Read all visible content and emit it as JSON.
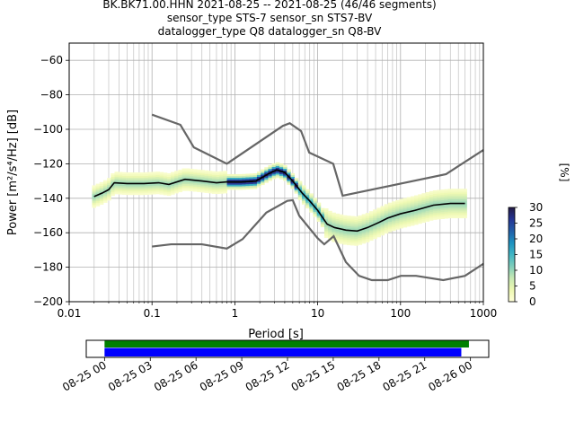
{
  "title_lines": [
    "BK.BK71.00.HHN   2021-08-25 -- 2021-08-25  (46/46 segments)",
    "sensor_type STS-7 sensor_sn STS7-BV",
    "datalogger_type Q8 datalogger_sn Q8-BV"
  ],
  "chart_data": [
    {
      "type": "heatmap",
      "xlabel": "Period [s]",
      "ylabel": "Power [m²/s⁴/Hz] [dB]",
      "xscale": "log",
      "xlim": [
        0.01,
        1000
      ],
      "ylim": [
        -200,
        -50
      ],
      "x_ticks": [
        0.01,
        0.1,
        1,
        10,
        100,
        1000
      ],
      "x_tick_labels": [
        "0.01",
        "0.1",
        "1",
        "10",
        "100",
        "1000"
      ],
      "y_ticks": [
        -200,
        -180,
        -160,
        -140,
        -120,
        -100,
        -80,
        -60
      ],
      "y_tick_labels": [
        "−200",
        "−180",
        "−160",
        "−140",
        "−120",
        "−100",
        "−80",
        "−60"
      ],
      "grid": true,
      "noise_model_high": {
        "period": [
          0.1,
          0.22,
          0.32,
          0.8,
          3.8,
          4.6,
          6.3,
          7.9,
          15.4,
          20,
          354.8,
          1000
        ],
        "power": [
          -91.5,
          -97.4,
          -110.5,
          -120,
          -98,
          -96.5,
          -101,
          -113.5,
          -120,
          -138.5,
          -126,
          -112
        ]
      },
      "noise_model_low": {
        "period": [
          0.1,
          0.17,
          0.4,
          0.8,
          1.24,
          2.4,
          4.3,
          5,
          6,
          10,
          12,
          15.6,
          21.9,
          31.6,
          45,
          70,
          101,
          154,
          328,
          600,
          1000
        ],
        "power": [
          -168,
          -166.7,
          -166.7,
          -169.2,
          -163.7,
          -148.3,
          -141.5,
          -141.1,
          -150.2,
          -163.2,
          -166.7,
          -162,
          -177,
          -185,
          -187.5,
          -187.5,
          -185,
          -185,
          -187.5,
          -185,
          -178
        ]
      },
      "mean_psd": {
        "period": [
          0.02,
          0.025,
          0.03,
          0.035,
          0.05,
          0.08,
          0.12,
          0.16,
          0.25,
          0.4,
          0.6,
          0.8,
          1.2,
          1.8,
          2.5,
          3.2,
          4.0,
          5.0,
          6.5,
          8.0,
          10,
          13,
          16,
          22,
          30,
          40,
          55,
          70,
          100,
          150,
          250,
          400,
          600
        ],
        "power": [
          -139,
          -137,
          -135,
          -131,
          -131.5,
          -131.5,
          -131,
          -132,
          -129,
          -130,
          -131,
          -130.5,
          -130.5,
          -130,
          -126,
          -123.5,
          -125,
          -130,
          -137,
          -141.5,
          -147,
          -155,
          -157,
          -158.5,
          -159,
          -157,
          -154,
          -151.5,
          -149,
          -147,
          -144,
          -143,
          -143
        ]
      },
      "colorbar": {
        "label": "[%]",
        "ticks": [
          0,
          5,
          10,
          15,
          20,
          25,
          30
        ],
        "tick_labels": [
          "0",
          "5",
          "10",
          "15",
          "20",
          "25",
          "30"
        ],
        "range": [
          0,
          30
        ],
        "colormap": [
          "#ffffd9",
          "#edf8b1",
          "#c7e9b4",
          "#7fcdbb",
          "#41b6c4",
          "#1d91c0",
          "#225ea8",
          "#253494",
          "#241a44"
        ]
      }
    },
    {
      "type": "timeline",
      "x_tick_labels": [
        "08-25 00",
        "08-25 03",
        "08-25 06",
        "08-25 09",
        "08-25 12",
        "08-25 15",
        "08-25 18",
        "08-25 21",
        "08-26 00"
      ],
      "x_tick_hours": [
        0,
        3,
        6,
        9,
        12,
        15,
        18,
        21,
        24
      ],
      "xlim_hours": [
        -1.2,
        25.2
      ],
      "bars": [
        {
          "row": "upper",
          "start_hour": 0,
          "end_hour": 23.9,
          "color": "#008000"
        },
        {
          "row": "lower",
          "start_hour": 0,
          "end_hour": 23.4,
          "color": "#0000ff"
        }
      ]
    }
  ]
}
